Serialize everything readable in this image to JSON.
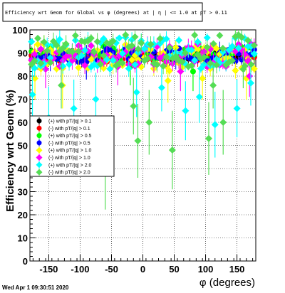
{
  "window": {
    "footer_date": "Wed Apr  1 09:30:51 2020"
  },
  "chart_data": {
    "type": "scatter",
    "title": "Efficiency wrt Geom for Global vs φ (degrees) at | η | <= 1.0 at pT > 0.11",
    "xlabel": "φ (degrees)",
    "ylabel": "Efficiency wrt Geom (%)",
    "xlim": [
      -180,
      180
    ],
    "ylim": [
      0,
      100
    ],
    "x_ticks": [
      -150,
      -100,
      -50,
      0,
      50,
      100,
      150
    ],
    "y_ticks": [
      0,
      10,
      20,
      30,
      40,
      50,
      60,
      70,
      80,
      90,
      100
    ],
    "grid": true,
    "legend_placement": "left-middle",
    "series": [
      {
        "name": "(+) with pT/|q| > 0.1",
        "color": "#000000",
        "marker": "circle",
        "base": 89,
        "spread": 2,
        "dips": []
      },
      {
        "name": "(-) with pT/|q| > 0.1",
        "color": "#ff0000",
        "marker": "circle",
        "base": 88,
        "spread": 2,
        "dips": []
      },
      {
        "name": "(+) with pT/|q| > 0.5",
        "color": "#00ff00",
        "marker": "circle",
        "base": 90,
        "spread": 3,
        "dips": [
          [
            -20,
            84
          ],
          [
            80,
            82
          ]
        ]
      },
      {
        "name": "(-) with pT/|q| > 0.5",
        "color": "#0000ff",
        "marker": "circle",
        "base": 89,
        "spread": 3,
        "dips": [
          [
            -90,
            86
          ]
        ]
      },
      {
        "name": "(+) with pT/|q| > 1.0",
        "color": "#ffff00",
        "marker": "diamond",
        "base": 88,
        "spread": 6,
        "dips": [
          [
            -172,
            79
          ],
          [
            -128,
            76
          ],
          [
            40,
            78
          ],
          [
            95,
            79
          ],
          [
            165,
            79
          ]
        ]
      },
      {
        "name": "(-) with pT/|q| > 1.0",
        "color": "#ff00ff",
        "marker": "diamond",
        "base": 89,
        "spread": 5,
        "dips": [
          [
            -155,
            83
          ],
          [
            -40,
            84
          ],
          [
            60,
            82
          ],
          [
            170,
            80
          ]
        ]
      },
      {
        "name": "(+) with pT/|q| > 2.0",
        "color": "#00ffff",
        "marker": "diamond",
        "base": 90,
        "spread": 7,
        "dips": [
          [
            -176,
            72
          ],
          [
            -150,
            62
          ],
          [
            -110,
            66
          ],
          [
            -75,
            70
          ],
          [
            -10,
            73
          ],
          [
            30,
            75
          ],
          [
            68,
            65
          ],
          [
            90,
            71
          ],
          [
            115,
            59
          ],
          [
            150,
            66
          ],
          [
            172,
            77
          ]
        ]
      },
      {
        "name": "(-) with pT/|q| > 2.0",
        "color": "#55dd55",
        "marker": "diamond",
        "base": 91,
        "spread": 7,
        "dips": [
          [
            -130,
            76
          ],
          [
            -60,
            41
          ],
          [
            -15,
            67
          ],
          [
            -8,
            52
          ],
          [
            10,
            60
          ],
          [
            47,
            48
          ],
          [
            105,
            53
          ],
          [
            112,
            76
          ],
          [
            128,
            60
          ],
          [
            160,
            83
          ]
        ]
      }
    ]
  }
}
